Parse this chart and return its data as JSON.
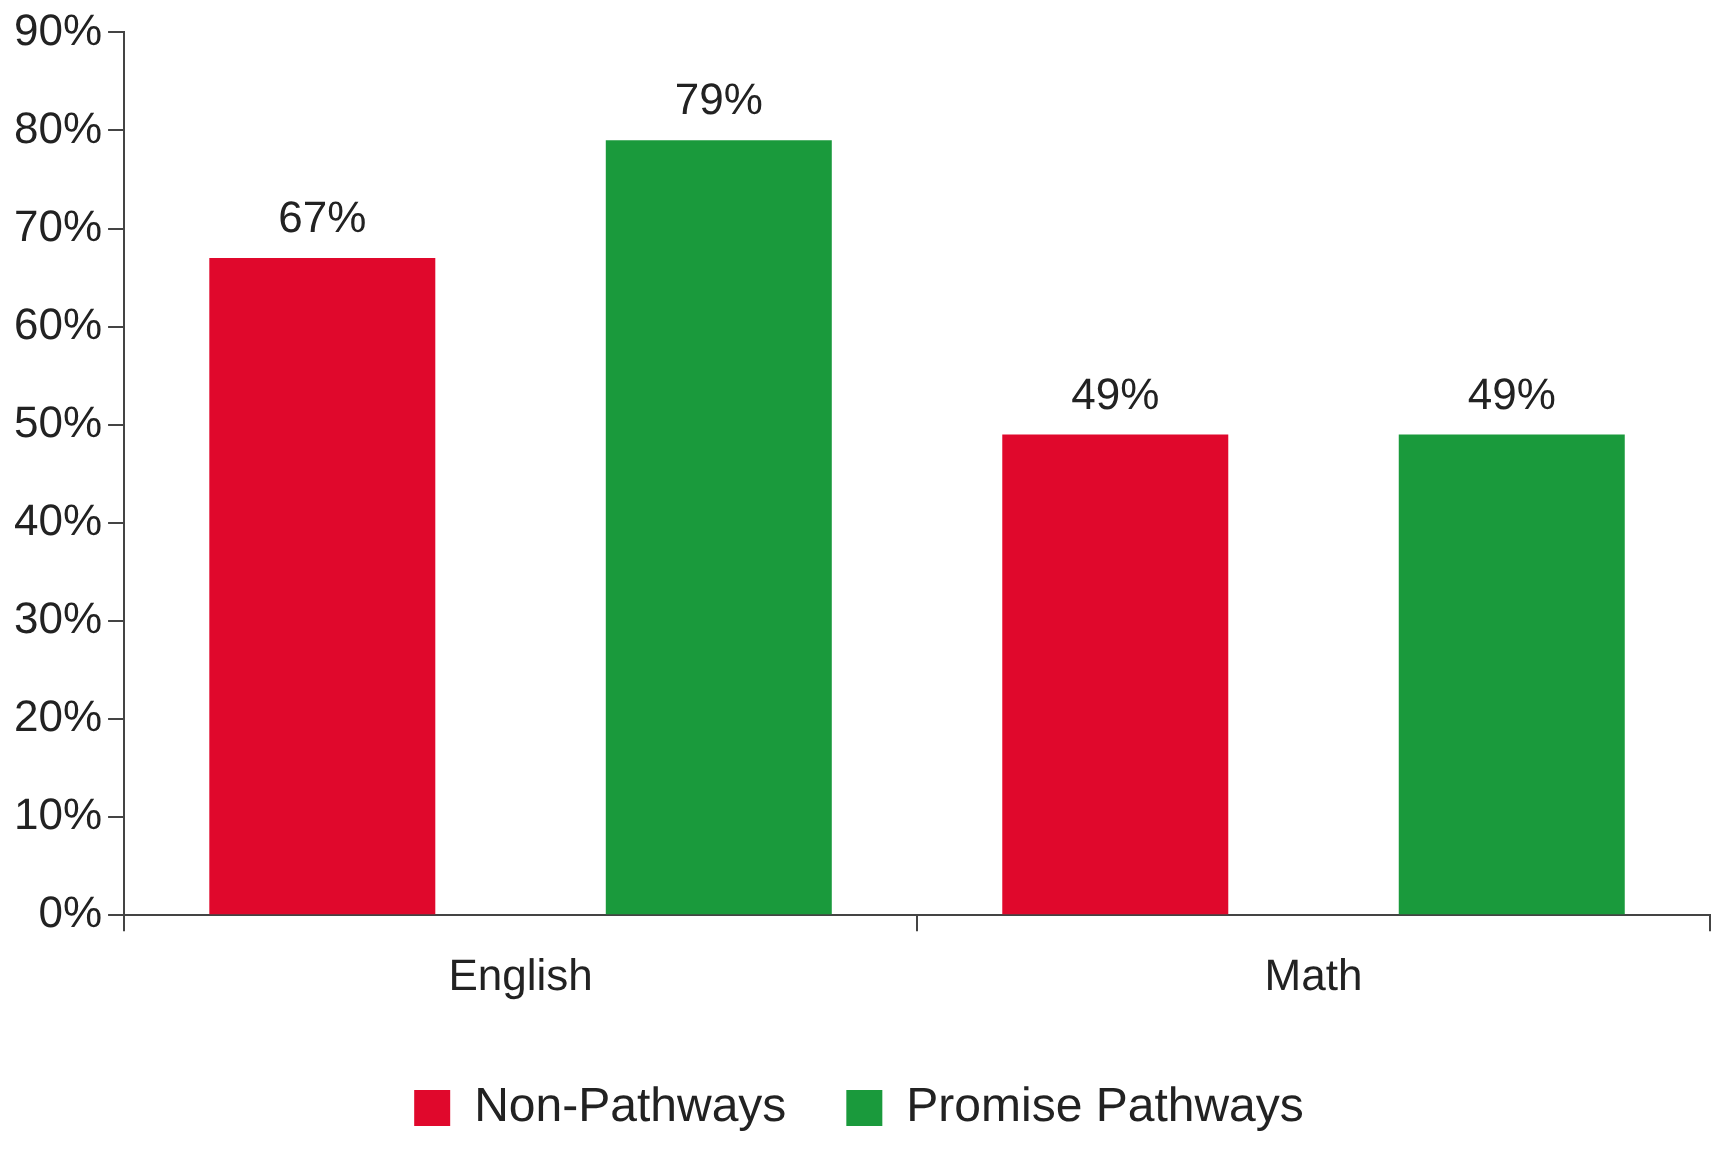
{
  "chart_data": {
    "type": "bar",
    "categories": [
      "English",
      "Math"
    ],
    "series": [
      {
        "name": "Non-Pathways",
        "color": "#e0082c",
        "values": [
          67,
          49
        ],
        "value_labels": [
          "67%",
          "49%"
        ]
      },
      {
        "name": "Promise Pathways",
        "color": "#1a9a3c",
        "values": [
          79,
          49
        ],
        "value_labels": [
          "79%",
          "49%"
        ]
      }
    ],
    "ylim": [
      0,
      90
    ],
    "yticks": [
      {
        "value": 0,
        "label": "0%"
      },
      {
        "value": 10,
        "label": "10%"
      },
      {
        "value": 20,
        "label": "20%"
      },
      {
        "value": 30,
        "label": "30%"
      },
      {
        "value": 40,
        "label": "40%"
      },
      {
        "value": 50,
        "label": "50%"
      },
      {
        "value": 60,
        "label": "60%"
      },
      {
        "value": 70,
        "label": "70%"
      },
      {
        "value": 80,
        "label": "80%"
      },
      {
        "value": 90,
        "label": "90%"
      }
    ],
    "grid": false,
    "legend": "bottom"
  }
}
